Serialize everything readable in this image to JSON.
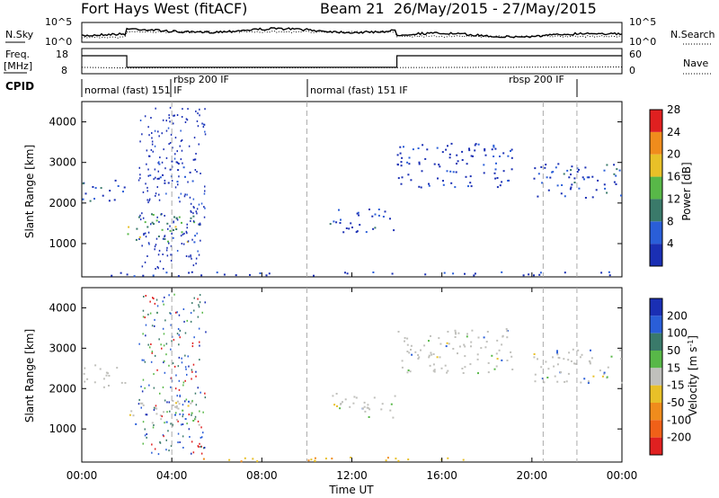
{
  "header": {
    "title": "Fort Hays West (fitACF)",
    "beam": "Beam 21",
    "dates": "26/May/2015 - 27/May/2015"
  },
  "colors": {
    "dark_blue": "#1a2fb4",
    "blue": "#1f4fd0",
    "teal": "#3a7a6a",
    "green": "#58b848",
    "light_green": "#9ad04c",
    "yellow": "#e8c028",
    "orange": "#f08c1c",
    "red": "#e02020",
    "gray": "#c0c0bc"
  },
  "chart_data": [
    {
      "type": "line",
      "panel": "noise",
      "left_label": "N.Sky",
      "left_ticks": [
        "10^5",
        "10^0"
      ],
      "right_ticks": [
        "10^5",
        "10^0"
      ],
      "right_label": "N.Search"
    },
    {
      "type": "line",
      "panel": "frequency",
      "left_label": "Freq.",
      "left_unit": "[MHz]",
      "left_ticks": [
        "18",
        "8"
      ],
      "right_ticks": [
        "60",
        "0"
      ],
      "right_label": "Nave",
      "series": [
        {
          "name": "Freq",
          "x": [
            0,
            2.0,
            2.0,
            14.0,
            14.0,
            24
          ],
          "values": [
            16.2,
            16.2,
            10.3,
            10.3,
            16.2,
            16.2
          ]
        },
        {
          "name": "Nave",
          "x": [
            0,
            2,
            14,
            18,
            24
          ],
          "values": [
            14,
            12,
            13,
            14,
            15
          ]
        }
      ]
    },
    {
      "type": "table",
      "panel": "cpid",
      "label": "CPID",
      "segments": [
        {
          "start": 0,
          "end": 4.0,
          "label": "normal (fast) 151 IF"
        },
        {
          "start": 4.0,
          "end": 10.0,
          "label": "rbsp 200 IF"
        },
        {
          "start": 10.0,
          "end": 20.5,
          "label": "normal (fast) 151 IF"
        },
        {
          "start": 20.5,
          "end": 24.0,
          "label": "rbsp 200 IF"
        }
      ]
    },
    {
      "type": "heatmap",
      "panel": "power",
      "ylabel": "Slant Range [km]",
      "ylim": [
        180,
        4500
      ],
      "y_ticks": [
        1000,
        2000,
        3000,
        4000
      ],
      "xlim": [
        0,
        24
      ],
      "colorbar_label": "Power [dB]",
      "colorbar_ticks": [
        4,
        8,
        12,
        16,
        20,
        24,
        28
      ],
      "colorbar_colors": [
        "#1a2fb4",
        "#2a5ed8",
        "#3a7a6a",
        "#58b848",
        "#e8c028",
        "#f08c1c",
        "#e02020"
      ],
      "features": [
        {
          "t0": 0.0,
          "t1": 1.9,
          "r0": 2050,
          "r1": 2600,
          "level": 2
        },
        {
          "t0": 2.0,
          "t1": 5.2,
          "r0": 1050,
          "r1": 1750,
          "level": 3
        },
        {
          "t0": 11.0,
          "t1": 14.0,
          "r0": 1300,
          "r1": 1900,
          "level": 2
        },
        {
          "t0": 14.0,
          "t1": 19.2,
          "r0": 2400,
          "r1": 3500,
          "level": 1
        },
        {
          "t0": 20.0,
          "t1": 24.0,
          "r0": 2150,
          "r1": 3000,
          "level": 2
        },
        {
          "t0": 3.0,
          "t1": 5.0,
          "r0": 2500,
          "r1": 3100,
          "level": 1
        },
        {
          "t0": 0.5,
          "t1": 24.0,
          "r0": 220,
          "r1": 320,
          "level": 1
        }
      ]
    },
    {
      "type": "heatmap",
      "panel": "velocity",
      "ylabel": "Slant Range [km]",
      "xlabel": "Time UT",
      "ylim": [
        180,
        4500
      ],
      "y_ticks": [
        1000,
        2000,
        3000,
        4000
      ],
      "xlim": [
        0,
        24
      ],
      "x_ticks": [
        "00:00",
        "04:00",
        "08:00",
        "12:00",
        "16:00",
        "20:00",
        "00:00"
      ],
      "colorbar_label": "Velocity [m s-1]",
      "colorbar_ticks": [
        200,
        100,
        50,
        15,
        -15,
        -50,
        -100,
        -200
      ],
      "colorbar_colors": [
        "#1a2fb4",
        "#2a5ed8",
        "#3a7a6a",
        "#58b848",
        "#c0c0bc",
        "#e8c028",
        "#f08c1c",
        "#f06018",
        "#e02020"
      ],
      "features": [
        {
          "t0": 0.0,
          "t1": 1.9,
          "r0": 2050,
          "r1": 2600,
          "level": 4
        },
        {
          "t0": 2.0,
          "t1": 5.2,
          "r0": 1050,
          "r1": 1750,
          "level": 4
        },
        {
          "t0": 11.0,
          "t1": 14.0,
          "r0": 1300,
          "r1": 1900,
          "level": 4
        },
        {
          "t0": 14.0,
          "t1": 19.2,
          "r0": 2400,
          "r1": 3500,
          "level": 4
        },
        {
          "t0": 20.0,
          "t1": 24.0,
          "r0": 2150,
          "r1": 3000,
          "level": 4
        },
        {
          "t0": 5.0,
          "t1": 18.0,
          "r0": 220,
          "r1": 320,
          "level": 5
        }
      ]
    }
  ],
  "xaxis": {
    "label": "Time UT",
    "ticks": [
      "00:00",
      "04:00",
      "08:00",
      "12:00",
      "16:00",
      "20:00",
      "00:00"
    ]
  }
}
